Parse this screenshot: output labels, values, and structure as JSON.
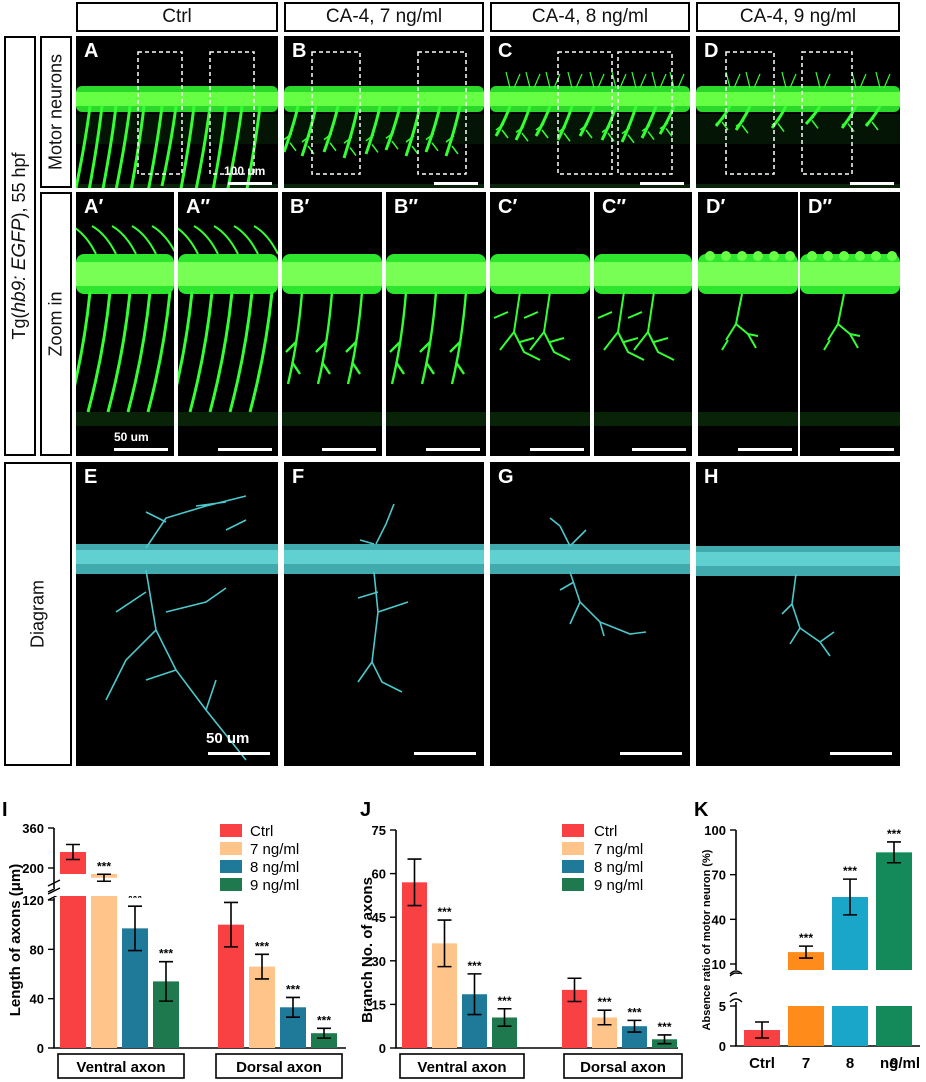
{
  "columns": [
    "Ctrl",
    "CA-4, 7 ng/ml",
    "CA-4, 8 ng/ml",
    "CA-4, 9 ng/ml"
  ],
  "row_titles": {
    "outer": "Tg(hb9: EGFP), 55 hpf",
    "outer_a": "Tg(",
    "outer_b": "hb9: EGFP",
    "outer_c": "), 55 hpf",
    "motor": "Motor neurons",
    "zoom": "Zoom in",
    "diagram": "Diagram"
  },
  "panel_labels": {
    "top": [
      "A",
      "B",
      "C",
      "D"
    ],
    "zoom": [
      "A′",
      "A″",
      "B′",
      "B″",
      "C′",
      "C″",
      "D′",
      "D″"
    ],
    "diagram": [
      "E",
      "F",
      "G",
      "H"
    ]
  },
  "scalebars": {
    "top": "100 um",
    "zoom": "50 um",
    "diagram": "50 um"
  },
  "colors": {
    "neuron": "#33ff33",
    "diagram": "#4cc8cc",
    "ctrl": "#f94144",
    "ng7": "#ffc48a",
    "ng8": "#1f7a9a",
    "ng9": "#1e7a4e",
    "k7": "#ff8c1a",
    "k8": "#1aa6c9",
    "k9": "#148a5a"
  },
  "panel_I": {
    "letter": "I",
    "ylabel": "Length of axons (μm)",
    "yticks": [
      "0",
      "40",
      "80",
      "120",
      "200",
      "360"
    ],
    "groups": [
      "Ventral axon",
      "Dorsal axon"
    ],
    "legend": [
      "Ctrl",
      "7  ng/ml",
      "8  ng/ml",
      "9  ng/ml"
    ],
    "sig": "***"
  },
  "panel_J": {
    "letter": "J",
    "ylabel": "Branch No. of axons",
    "yticks": [
      "0",
      "15",
      "30",
      "45",
      "60",
      "75"
    ],
    "groups": [
      "Ventral axon",
      "Dorsal axon"
    ],
    "legend": [
      "Ctrl",
      "7  ng/ml",
      "8  ng/ml",
      "9  ng/ml"
    ],
    "sig": "***"
  },
  "panel_K": {
    "letter": "K",
    "ylabel": "Absence ratio of motor neuron (%)",
    "yticks": [
      "0",
      "5",
      "10",
      "40",
      "70",
      "100"
    ],
    "categories": [
      "Ctrl",
      "7",
      "8",
      "9"
    ],
    "unit": "ng/ml",
    "sig": "***"
  },
  "chart_data": [
    {
      "type": "bar",
      "categories": [
        "Ventral axon",
        "Dorsal axon"
      ],
      "ylabel": "Length of axons (μm)",
      "series": [
        {
          "name": "Ctrl",
          "values": [
            264,
            100
          ],
          "err": [
            30,
            18
          ]
        },
        {
          "name": "7  ng/ml",
          "values": [
            161,
            66
          ],
          "err": [
            14,
            10
          ]
        },
        {
          "name": "8  ng/ml",
          "values": [
            97,
            33
          ],
          "err": [
            18,
            8
          ]
        },
        {
          "name": "9  ng/ml",
          "values": [
            54,
            12
          ],
          "err": [
            16,
            4
          ]
        }
      ]
    },
    {
      "type": "bar",
      "categories": [
        "Ventral axon",
        "Dorsal axon"
      ],
      "ylabel": "Branch No. of axons",
      "ylim": [
        0,
        75
      ],
      "series": [
        {
          "name": "Ctrl",
          "values": [
            57,
            20
          ],
          "err": [
            8,
            4
          ]
        },
        {
          "name": "7  ng/ml",
          "values": [
            36,
            10.5
          ],
          "err": [
            8,
            2.5
          ]
        },
        {
          "name": "8  ng/ml",
          "values": [
            18.5,
            7.5
          ],
          "err": [
            7,
            2
          ]
        },
        {
          "name": "9  ng/ml",
          "values": [
            10.5,
            3
          ],
          "err": [
            3,
            1.5
          ]
        }
      ]
    },
    {
      "type": "bar",
      "categories": [
        "Ctrl",
        "7",
        "8",
        "9"
      ],
      "ylabel": "Absence ratio of motor neuron (%)",
      "ylim": [
        0,
        100
      ],
      "values": [
        2.0,
        18,
        55,
        85
      ],
      "err": [
        1.0,
        4,
        12,
        7
      ]
    }
  ]
}
